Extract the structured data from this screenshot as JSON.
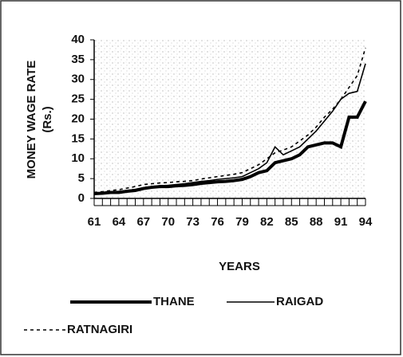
{
  "chart_data": {
    "type": "line",
    "y_label": "MONEY WAGE RATE",
    "y_label_unit": "(Rs.)",
    "x_label": "YEARS",
    "x": [
      61,
      62,
      63,
      64,
      65,
      66,
      67,
      68,
      69,
      70,
      71,
      72,
      73,
      74,
      75,
      76,
      77,
      78,
      79,
      80,
      81,
      82,
      83,
      84,
      85,
      86,
      87,
      88,
      89,
      90,
      91,
      92,
      93,
      94
    ],
    "xlim": [
      61,
      94
    ],
    "xticks": [
      61,
      64,
      67,
      70,
      73,
      76,
      79,
      82,
      85,
      88,
      91,
      94
    ],
    "ylim": [
      0,
      40
    ],
    "yticks": [
      0,
      5,
      10,
      15,
      20,
      25,
      30,
      35,
      40
    ],
    "series": [
      {
        "name": "THANE",
        "color": "#000000",
        "width": 4,
        "style": "solid",
        "values": [
          1.2,
          1.3,
          1.5,
          1.5,
          1.8,
          2,
          2.5,
          2.8,
          3,
          3,
          3.2,
          3.3,
          3.5,
          3.8,
          4,
          4.2,
          4.3,
          4.5,
          4.8,
          5.5,
          6.5,
          7,
          9,
          9.5,
          10,
          11,
          13,
          13.5,
          14,
          14,
          13,
          20.5,
          20.5,
          24.5
        ]
      },
      {
        "name": "RAIGAD",
        "color": "#000000",
        "width": 1.6,
        "style": "solid",
        "values": [
          1.3,
          1.5,
          1.7,
          1.8,
          2,
          2.3,
          2.7,
          3,
          3.2,
          3.3,
          3.5,
          3.7,
          4,
          4.3,
          4.5,
          4.8,
          5,
          5.2,
          5.5,
          6.5,
          7.5,
          9,
          13,
          11,
          12,
          13,
          15,
          17,
          19.5,
          22,
          25,
          26.5,
          27,
          34
        ]
      },
      {
        "name": "RATNAGIRI",
        "color": "#000000",
        "width": 1.6,
        "style": "dotted",
        "values": [
          1.5,
          1.7,
          2,
          2.2,
          2.6,
          3,
          3.5,
          3.7,
          3.9,
          4,
          4.2,
          4.3,
          4.5,
          4.9,
          5.2,
          5.5,
          5.8,
          6.1,
          6.5,
          7.5,
          8.5,
          10,
          11.5,
          12.2,
          13,
          14.5,
          16,
          18,
          20.5,
          22.5,
          25,
          28,
          31,
          38
        ]
      }
    ]
  }
}
